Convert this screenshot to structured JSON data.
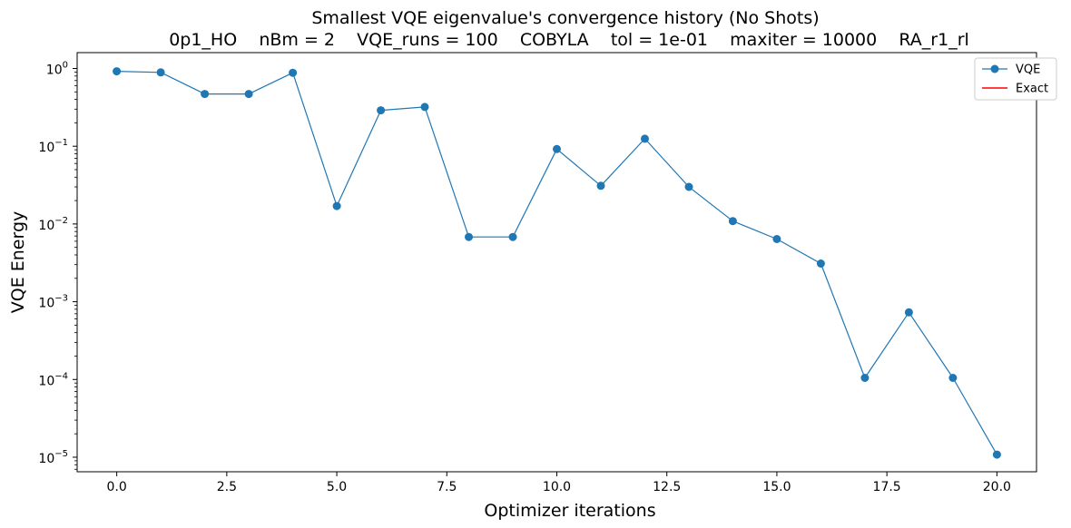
{
  "chart_data": {
    "type": "line",
    "title": "Smallest VQE eigenvalue's convergence history (No Shots)",
    "subtitle": "0p1_HO    nBm = 2    VQE_runs = 100    COBYLA    tol = 1e-01    maxiter = 10000    RA_r1_rl",
    "xlabel": "Optimizer iterations",
    "ylabel": "VQE Energy",
    "xlim": [
      -0.9,
      20.9
    ],
    "ylim": [
      6.5e-06,
      1.6
    ],
    "yscale": "log",
    "grid": false,
    "legend_position": "top-right",
    "x_ticks": [
      {
        "value": 0.0,
        "label": "0.0"
      },
      {
        "value": 2.5,
        "label": "2.5"
      },
      {
        "value": 5.0,
        "label": "5.0"
      },
      {
        "value": 7.5,
        "label": "7.5"
      },
      {
        "value": 10.0,
        "label": "10.0"
      },
      {
        "value": 12.5,
        "label": "12.5"
      },
      {
        "value": 15.0,
        "label": "15.0"
      },
      {
        "value": 17.5,
        "label": "17.5"
      },
      {
        "value": 20.0,
        "label": "20.0"
      }
    ],
    "y_ticks": [
      {
        "exp": 0,
        "label_base": "10",
        "label_exp": "0"
      },
      {
        "exp": -1,
        "label_base": "10",
        "label_exp": "−1"
      },
      {
        "exp": -2,
        "label_base": "10",
        "label_exp": "−2"
      },
      {
        "exp": -3,
        "label_base": "10",
        "label_exp": "−3"
      },
      {
        "exp": -4,
        "label_base": "10",
        "label_exp": "−4"
      },
      {
        "exp": -5,
        "label_base": "10",
        "label_exp": "−5"
      }
    ],
    "series": [
      {
        "name": "VQE",
        "color": "#1f77b4",
        "marker": "circle",
        "x": [
          0,
          1,
          2,
          3,
          4,
          5,
          6,
          7,
          8,
          9,
          10,
          11,
          12,
          13,
          14,
          15,
          16,
          17,
          18,
          19,
          20
        ],
        "y": [
          0.92,
          0.89,
          0.47,
          0.47,
          0.88,
          0.017,
          0.29,
          0.32,
          0.0068,
          0.0068,
          0.092,
          0.031,
          0.125,
          0.03,
          0.0109,
          0.0064,
          0.0031,
          0.000105,
          0.00073,
          0.000105,
          1.08e-05
        ]
      },
      {
        "name": "Exact",
        "color": "#ff0000",
        "marker": "none",
        "x": [],
        "y": []
      }
    ]
  }
}
